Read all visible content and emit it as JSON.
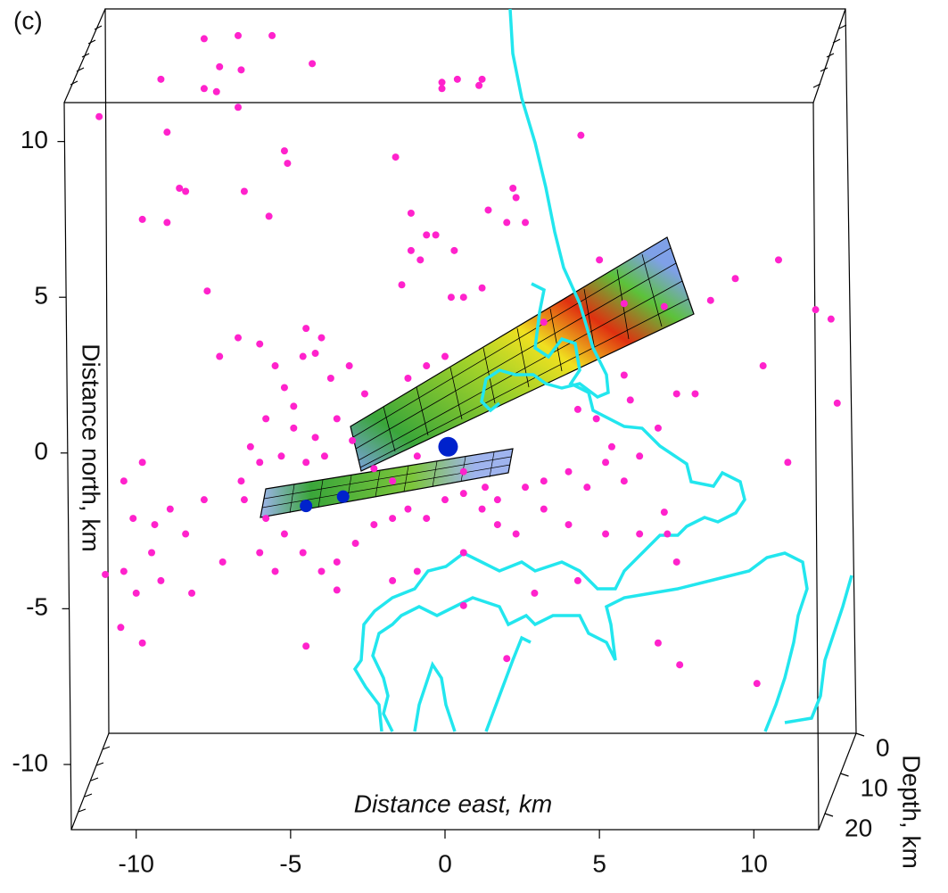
{
  "chart_data": {
    "type": "scatter3d",
    "panel_label": "(c)",
    "x_label": "Distance east, km",
    "y_label": "Distance north, km",
    "z_label": "Depth, km",
    "xlim": [
      -12.1,
      12.1
    ],
    "xticks": [
      -10,
      -5,
      0,
      5,
      10
    ],
    "ylim": [
      -11.95,
      11.25
    ],
    "yticks": [
      10,
      5,
      0,
      -5,
      -10
    ],
    "zlim": [
      0,
      24
    ],
    "zticks": [
      0,
      10,
      20
    ],
    "series": [
      {
        "color": "#ff22cc",
        "size": 4,
        "x": [
          -7.8,
          -6.7,
          -5.6,
          -7.3,
          -6.6,
          -4.3,
          -9.2,
          -7.8,
          -7.4,
          -6.7,
          -0.1,
          -0.1,
          0.4,
          1.1,
          1.2,
          -11.2,
          -9.0,
          -5.2,
          -5.1,
          -8.6,
          -8.4,
          -6.5,
          -1.6,
          4.4,
          2.2,
          2.3,
          -9.8,
          -9.0,
          -5.7,
          -1.1,
          -0.6,
          -0.3,
          1.4,
          2.0,
          2.6,
          0.3,
          -1.1,
          -0.8,
          -7.7,
          -1.4,
          0.2,
          0.6,
          1.2,
          10.8,
          9.4,
          8.6,
          12.0,
          12.5,
          12.7,
          10.3,
          7.1,
          5.0,
          5.8,
          3.2,
          -6.7,
          -6.0,
          -4.5,
          -4.0,
          -4.2,
          -4.6,
          -5.5,
          -7.3,
          -5.2,
          -4.9,
          -3.7,
          -3.1,
          -2.6,
          -1.2,
          -0.6,
          0.0,
          -5.8,
          -4.9,
          -4.2,
          -3.5,
          -3.0,
          -6.3,
          -6.0,
          -5.3,
          -4.5,
          -3.9,
          -2.3,
          -1.7,
          -0.9,
          0.6,
          1.3,
          1.7,
          2.6,
          3.2,
          4.0,
          4.6,
          5.2,
          5.8,
          6.3,
          6.9,
          7.5,
          8.1,
          5.8,
          6.0,
          5.4,
          4.9,
          4.3,
          -9.8,
          -10.4,
          -10.1,
          -9.4,
          -8.9,
          -8.4,
          -7.8,
          -9.5,
          -10.4,
          -9.2,
          -8.2,
          -10.0,
          -10.5,
          -9.8,
          -11.0,
          -6.6,
          -6.5,
          -5.8,
          -5.2,
          -4.6,
          -4.0,
          -3.5,
          -2.9,
          -2.3,
          -1.7,
          -1.2,
          -0.6,
          0.0,
          0.6,
          1.2,
          1.7,
          2.3,
          3.2,
          4.0,
          5.2,
          6.3,
          7.1,
          7.2,
          7.5,
          0.6,
          -0.9,
          -1.7,
          -3.5,
          -4.5,
          0.6,
          2.9,
          2.0,
          6.9,
          7.6,
          10.1,
          11.1,
          4.3,
          -7.2,
          -6.0,
          -5.5
        ],
        "y": [
          13.3,
          13.4,
          13.4,
          12.4,
          12.3,
          12.5,
          12.0,
          11.7,
          11.6,
          11.1,
          11.9,
          11.7,
          12.0,
          11.8,
          12.0,
          10.8,
          10.3,
          9.7,
          9.3,
          8.5,
          8.4,
          8.4,
          9.5,
          10.2,
          8.5,
          8.2,
          7.5,
          7.4,
          7.6,
          7.7,
          7.0,
          7.0,
          7.8,
          7.4,
          7.4,
          6.5,
          6.5,
          6.2,
          5.2,
          5.4,
          5.0,
          5.0,
          5.3,
          6.2,
          5.6,
          4.9,
          4.6,
          4.3,
          1.6,
          2.8,
          4.7,
          6.2,
          4.8,
          4.2,
          3.7,
          3.5,
          4.0,
          3.7,
          3.2,
          3.1,
          2.8,
          3.1,
          2.1,
          1.5,
          2.4,
          2.8,
          1.9,
          2.4,
          2.8,
          3.1,
          1.1,
          0.8,
          0.5,
          1.1,
          0.4,
          0.2,
          -0.3,
          -0.1,
          -0.3,
          -0.1,
          -0.5,
          -0.9,
          -0.1,
          -0.6,
          -1.1,
          -1.5,
          -1.1,
          -0.9,
          -0.6,
          -1.1,
          -0.3,
          -0.9,
          -0.1,
          0.8,
          1.9,
          1.9,
          2.5,
          1.7,
          0.2,
          1.1,
          1.4,
          -0.3,
          -0.9,
          -2.1,
          -2.3,
          -1.8,
          -2.6,
          -1.5,
          -3.2,
          -3.8,
          -4.1,
          -4.5,
          -4.5,
          -5.6,
          -6.1,
          -3.9,
          -0.9,
          -1.5,
          -2.1,
          -2.6,
          -3.2,
          -3.8,
          -3.5,
          -2.9,
          -2.3,
          -2.1,
          -1.8,
          -2.1,
          -1.5,
          -1.3,
          -1.8,
          -2.3,
          -2.6,
          -1.8,
          -2.3,
          -2.6,
          -2.6,
          -1.9,
          -2.6,
          -3.5,
          -3.2,
          -3.8,
          -4.1,
          -4.4,
          -6.2,
          -4.9,
          -4.5,
          -6.6,
          -6.1,
          -6.8,
          -7.4,
          -0.3,
          -4.1,
          -3.5,
          -3.2,
          -3.8
        ]
      },
      {
        "color": "#0022cc",
        "size": 7,
        "x": [
          0.1,
          -3.3,
          -4.5
        ],
        "y": [
          0.2,
          -1.4,
          -1.7
        ]
      }
    ]
  }
}
